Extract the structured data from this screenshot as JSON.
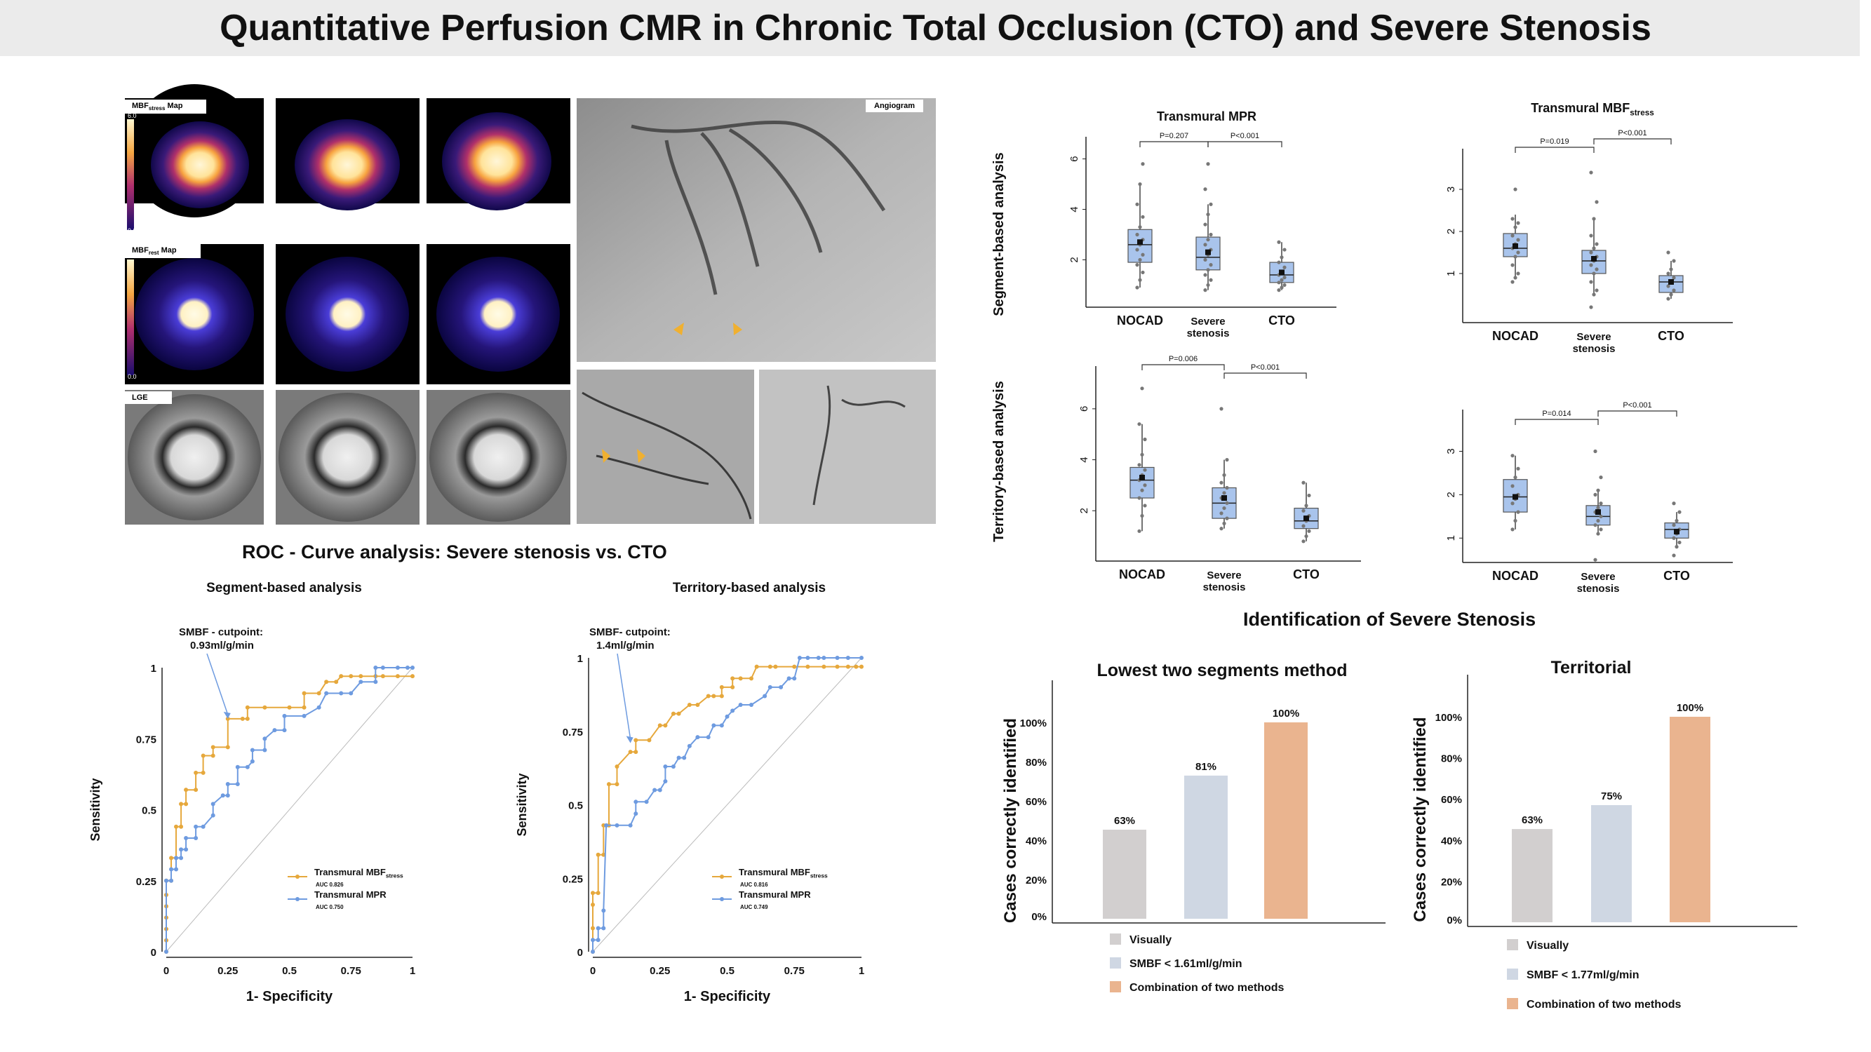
{
  "title": "Quantitative Perfusion CMR in Chronic Total Occlusion (CTO) and Severe Stenosis",
  "images": {
    "mbf_stress_label": "MBF",
    "mbf_stress_sub": "stress",
    "mbf_stress_suffix": " Map",
    "mbf_rest_label": "MBF",
    "mbf_rest_sub": "rest",
    "mbf_rest_suffix": " Map",
    "colorbar_max": "6.0",
    "colorbar_min": "0.0",
    "lge_label": "LGE",
    "angiogram_label": "Angiogram"
  },
  "roc_heading": "ROC - Curve analysis: Severe stenosis vs. CTO",
  "chart_data": [
    {
      "id": "roc-segment",
      "type": "line",
      "title": "Segment-based analysis",
      "xlabel": "1- Specificity",
      "ylabel": "Sensitivity",
      "xlim": [
        0,
        1
      ],
      "ylim": [
        0,
        1
      ],
      "ticks": [
        "0",
        "0.25",
        "0.5",
        "0.75",
        "1"
      ],
      "annotation_line1": "SMBF - cutpoint:",
      "annotation_line2": "0.93ml/g/min",
      "annotation_point": [
        0.25,
        0.82
      ],
      "series": [
        {
          "name": "Transmural MBF",
          "name_sub": "stress",
          "auc": "AUC 0.826",
          "color": "#e6a83c",
          "x": [
            0,
            0,
            0,
            0,
            0,
            0,
            0,
            0.02,
            0.02,
            0.04,
            0.04,
            0.06,
            0.06,
            0.08,
            0.08,
            0.12,
            0.12,
            0.15,
            0.15,
            0.19,
            0.19,
            0.25,
            0.25,
            0.31,
            0.33,
            0.33,
            0.4,
            0.5,
            0.56,
            0.56,
            0.62,
            0.65,
            0.69,
            0.71,
            0.75,
            0.79,
            0.85,
            0.88,
            0.94,
            1.0
          ],
          "y": [
            0,
            0.04,
            0.08,
            0.12,
            0.16,
            0.2,
            0.25,
            0.25,
            0.33,
            0.33,
            0.44,
            0.44,
            0.52,
            0.52,
            0.57,
            0.57,
            0.63,
            0.63,
            0.69,
            0.69,
            0.72,
            0.72,
            0.82,
            0.82,
            0.82,
            0.86,
            0.86,
            0.86,
            0.86,
            0.91,
            0.91,
            0.95,
            0.95,
            0.97,
            0.97,
            0.97,
            0.97,
            0.97,
            0.97,
            0.97
          ]
        },
        {
          "name": "Transmural MPR",
          "auc": "AUC 0.750",
          "color": "#6e9be0",
          "x": [
            0,
            0,
            0.02,
            0.02,
            0.04,
            0.04,
            0.06,
            0.06,
            0.08,
            0.08,
            0.12,
            0.12,
            0.15,
            0.19,
            0.19,
            0.23,
            0.25,
            0.25,
            0.29,
            0.29,
            0.33,
            0.35,
            0.35,
            0.4,
            0.4,
            0.44,
            0.48,
            0.48,
            0.56,
            0.62,
            0.65,
            0.71,
            0.75,
            0.79,
            0.85,
            0.85,
            0.88,
            0.94,
            0.98,
            1.0
          ],
          "y": [
            0,
            0.25,
            0.25,
            0.29,
            0.29,
            0.33,
            0.33,
            0.36,
            0.36,
            0.4,
            0.4,
            0.44,
            0.44,
            0.48,
            0.52,
            0.55,
            0.55,
            0.59,
            0.59,
            0.65,
            0.65,
            0.67,
            0.71,
            0.71,
            0.75,
            0.78,
            0.78,
            0.83,
            0.83,
            0.86,
            0.91,
            0.91,
            0.91,
            0.95,
            0.95,
            1.0,
            1.0,
            1.0,
            1.0,
            1.0
          ]
        }
      ]
    },
    {
      "id": "roc-territory",
      "type": "line",
      "title": "Territory-based analysis",
      "xlabel": "1- Specificity",
      "ylabel": "Sensitivity",
      "xlim": [
        0,
        1
      ],
      "ylim": [
        0,
        1
      ],
      "ticks": [
        "0",
        "0.25",
        "0.5",
        "0.75",
        "1"
      ],
      "annotation_line1": "SMBF- cutpoint:",
      "annotation_line2": "1.4ml/g/min",
      "annotation_point": [
        0.14,
        0.71
      ],
      "series": [
        {
          "name": "Transmural MBF",
          "name_sub": "stress",
          "auc": "AUC 0.816",
          "color": "#e6a83c",
          "x": [
            0,
            0,
            0,
            0,
            0.02,
            0.02,
            0.04,
            0.04,
            0.06,
            0.06,
            0.09,
            0.09,
            0.14,
            0.16,
            0.16,
            0.21,
            0.25,
            0.27,
            0.3,
            0.32,
            0.36,
            0.39,
            0.43,
            0.45,
            0.48,
            0.48,
            0.52,
            0.52,
            0.55,
            0.59,
            0.61,
            0.66,
            0.68,
            0.75,
            0.8,
            0.86,
            0.91,
            0.95,
            0.98,
            1.0
          ],
          "y": [
            0,
            0.08,
            0.16,
            0.2,
            0.2,
            0.33,
            0.33,
            0.43,
            0.43,
            0.57,
            0.57,
            0.63,
            0.68,
            0.68,
            0.72,
            0.72,
            0.77,
            0.77,
            0.81,
            0.81,
            0.84,
            0.84,
            0.87,
            0.87,
            0.87,
            0.9,
            0.9,
            0.93,
            0.93,
            0.93,
            0.97,
            0.97,
            0.97,
            0.97,
            0.97,
            0.97,
            0.97,
            0.97,
            0.97,
            0.97
          ]
        },
        {
          "name": "Transmural MPR",
          "auc": "AUC 0.749",
          "color": "#6e9be0",
          "x": [
            0,
            0,
            0.02,
            0.02,
            0.04,
            0.04,
            0.05,
            0.09,
            0.14,
            0.16,
            0.16,
            0.2,
            0.23,
            0.25,
            0.27,
            0.27,
            0.3,
            0.32,
            0.34,
            0.36,
            0.39,
            0.43,
            0.45,
            0.48,
            0.5,
            0.52,
            0.55,
            0.59,
            0.64,
            0.66,
            0.7,
            0.73,
            0.75,
            0.77,
            0.8,
            0.84,
            0.86,
            0.91,
            0.95,
            1.0
          ],
          "y": [
            0,
            0.04,
            0.04,
            0.08,
            0.08,
            0.14,
            0.43,
            0.43,
            0.43,
            0.47,
            0.51,
            0.51,
            0.55,
            0.55,
            0.58,
            0.63,
            0.63,
            0.66,
            0.66,
            0.7,
            0.73,
            0.73,
            0.77,
            0.77,
            0.8,
            0.82,
            0.84,
            0.84,
            0.87,
            0.9,
            0.9,
            0.93,
            0.93,
            1.0,
            1.0,
            1.0,
            1.0,
            1.0,
            1.0,
            1.0
          ]
        }
      ]
    },
    {
      "id": "box-seg-mpr",
      "type": "box",
      "title": "Transmural MPR",
      "row_label": "Segment-based analysis",
      "categories": [
        "NOCAD",
        "Severe\nstenosis",
        "CTO"
      ],
      "ylim": [
        0.4,
        6.6
      ],
      "yticks": [
        2,
        4,
        6
      ],
      "boxes": [
        {
          "min": 0.9,
          "q1": 1.9,
          "median": 2.6,
          "mean": 2.7,
          "q3": 3.2,
          "max": 5.0,
          "points": [
            0.9,
            1.2,
            1.5,
            1.8,
            2.0,
            2.2,
            2.4,
            2.6,
            2.8,
            3.0,
            3.3,
            3.7,
            4.2,
            5.0,
            5.8
          ]
        },
        {
          "min": 0.8,
          "q1": 1.6,
          "median": 2.1,
          "mean": 2.3,
          "q3": 2.9,
          "max": 4.2,
          "points": [
            0.8,
            1.0,
            1.2,
            1.4,
            1.6,
            1.8,
            2.0,
            2.2,
            2.4,
            2.6,
            2.8,
            3.0,
            3.4,
            3.8,
            4.2,
            4.8,
            5.8
          ]
        },
        {
          "min": 0.8,
          "q1": 1.1,
          "median": 1.4,
          "mean": 1.5,
          "q3": 1.9,
          "max": 2.7,
          "points": [
            0.8,
            0.9,
            1.0,
            1.1,
            1.2,
            1.3,
            1.4,
            1.5,
            1.7,
            1.9,
            2.1,
            2.4,
            2.7
          ]
        }
      ],
      "brackets": [
        {
          "from": 0,
          "to": 1,
          "label": "P=0.207",
          "level": 0
        },
        {
          "from": 1,
          "to": 2,
          "label": "P<0.001",
          "level": 0
        }
      ]
    },
    {
      "id": "box-seg-mbf",
      "type": "box",
      "title": "Transmural MBF",
      "title_sub": "stress",
      "categories": [
        "NOCAD",
        "Severe\nstenosis",
        "CTO"
      ],
      "ylim": [
        0,
        3.8
      ],
      "yticks": [
        1,
        2,
        3
      ],
      "boxes": [
        {
          "min": 0.9,
          "q1": 1.4,
          "median": 1.6,
          "mean": 1.65,
          "q3": 1.95,
          "max": 2.4,
          "points": [
            0.8,
            0.9,
            1.0,
            1.2,
            1.4,
            1.5,
            1.6,
            1.7,
            1.8,
            1.9,
            2.1,
            2.2,
            2.3,
            3.0
          ]
        },
        {
          "min": 0.5,
          "q1": 1.0,
          "median": 1.3,
          "mean": 1.35,
          "q3": 1.55,
          "max": 2.3,
          "points": [
            0.2,
            0.5,
            0.6,
            0.8,
            1.0,
            1.1,
            1.2,
            1.3,
            1.4,
            1.5,
            1.6,
            1.7,
            1.9,
            2.3,
            2.7,
            3.4
          ]
        },
        {
          "min": 0.4,
          "q1": 0.55,
          "median": 0.8,
          "mean": 0.8,
          "q3": 0.95,
          "max": 1.3,
          "points": [
            0.4,
            0.5,
            0.6,
            0.7,
            0.8,
            0.9,
            1.0,
            1.1,
            1.3,
            1.5
          ]
        }
      ],
      "brackets": [
        {
          "from": 0,
          "to": 1,
          "label": "P=0.019",
          "level": 0
        },
        {
          "from": 1,
          "to": 2,
          "label": "P<0.001",
          "level": 1
        }
      ]
    },
    {
      "id": "box-ter-mpr",
      "type": "box",
      "row_label": "Territory-based analysis",
      "categories": [
        "NOCAD",
        "Severe\nstenosis",
        "CTO"
      ],
      "ylim": [
        0.3,
        7.4
      ],
      "yticks": [
        2,
        4,
        6
      ],
      "boxes": [
        {
          "min": 1.2,
          "q1": 2.5,
          "median": 3.2,
          "mean": 3.3,
          "q3": 3.7,
          "max": 5.4,
          "points": [
            1.2,
            1.8,
            2.2,
            2.5,
            2.8,
            3.0,
            3.2,
            3.4,
            3.6,
            3.8,
            4.2,
            4.8,
            5.4,
            6.8
          ]
        },
        {
          "min": 1.3,
          "q1": 1.7,
          "median": 2.3,
          "mean": 2.5,
          "q3": 2.9,
          "max": 4.0,
          "points": [
            1.3,
            1.5,
            1.7,
            1.9,
            2.1,
            2.3,
            2.5,
            2.7,
            2.9,
            3.1,
            3.4,
            4.0,
            6.0
          ]
        },
        {
          "min": 0.8,
          "q1": 1.3,
          "median": 1.6,
          "mean": 1.7,
          "q3": 2.1,
          "max": 3.1,
          "points": [
            0.8,
            1.0,
            1.2,
            1.4,
            1.6,
            1.8,
            2.0,
            2.2,
            2.6,
            3.1
          ]
        }
      ],
      "brackets": [
        {
          "from": 0,
          "to": 1,
          "label": "P=0.006",
          "level": 1
        },
        {
          "from": 1,
          "to": 2,
          "label": "P<0.001",
          "level": 0
        }
      ]
    },
    {
      "id": "box-ter-mbf",
      "type": "box",
      "categories": [
        "NOCAD",
        "Severe\nstenosis",
        "CTO"
      ],
      "ylim": [
        0.6,
        3.8
      ],
      "yticks": [
        1,
        2,
        3
      ],
      "boxes": [
        {
          "min": 1.2,
          "q1": 1.6,
          "median": 1.95,
          "mean": 1.95,
          "q3": 2.35,
          "max": 2.9,
          "points": [
            1.2,
            1.4,
            1.6,
            1.8,
            1.9,
            2.0,
            2.2,
            2.4,
            2.6,
            2.9
          ]
        },
        {
          "min": 1.1,
          "q1": 1.3,
          "median": 1.5,
          "mean": 1.6,
          "q3": 1.75,
          "max": 2.1,
          "points": [
            0.5,
            1.1,
            1.2,
            1.3,
            1.4,
            1.5,
            1.6,
            1.7,
            1.8,
            2.0,
            2.1,
            2.4,
            3.0
          ]
        },
        {
          "min": 0.8,
          "q1": 1.0,
          "median": 1.2,
          "mean": 1.15,
          "q3": 1.35,
          "max": 1.6,
          "points": [
            0.6,
            0.8,
            0.9,
            1.0,
            1.1,
            1.2,
            1.3,
            1.4,
            1.6,
            1.8
          ]
        }
      ],
      "brackets": [
        {
          "from": 0,
          "to": 1,
          "label": "P=0.014",
          "level": 0
        },
        {
          "from": 1,
          "to": 2,
          "label": "P<0.001",
          "level": 1
        }
      ]
    },
    {
      "id": "bar-lowest",
      "type": "bar",
      "title": "Lowest two segments method",
      "ylabel": "Cases correctly identified",
      "yticks": [
        "0%",
        "20%",
        "40%",
        "60%",
        "80%",
        "100%"
      ],
      "values": [
        63,
        81,
        100
      ],
      "value_labels": [
        "63%",
        "81%",
        "100%"
      ],
      "colors": [
        "#d2cfcf",
        "#cfd7e3",
        "#eab48f"
      ],
      "legend": [
        "Visually",
        "SMBF < 1.61ml/g/min",
        "Combination of two methods"
      ]
    },
    {
      "id": "bar-territorial",
      "type": "bar",
      "title": "Territorial",
      "ylabel": "Cases correctly identified",
      "yticks": [
        "0%",
        "20%",
        "40%",
        "60%",
        "80%",
        "100%"
      ],
      "values": [
        63,
        75,
        100
      ],
      "value_labels": [
        "63%",
        "75%",
        "100%"
      ],
      "colors": [
        "#d2cfcf",
        "#cfd7e3",
        "#eab48f"
      ],
      "legend": [
        "Visually",
        "SMBF < 1.77ml/g/min",
        "Combination of two methods"
      ]
    }
  ],
  "identification_heading": "Identification of Severe Stenosis"
}
